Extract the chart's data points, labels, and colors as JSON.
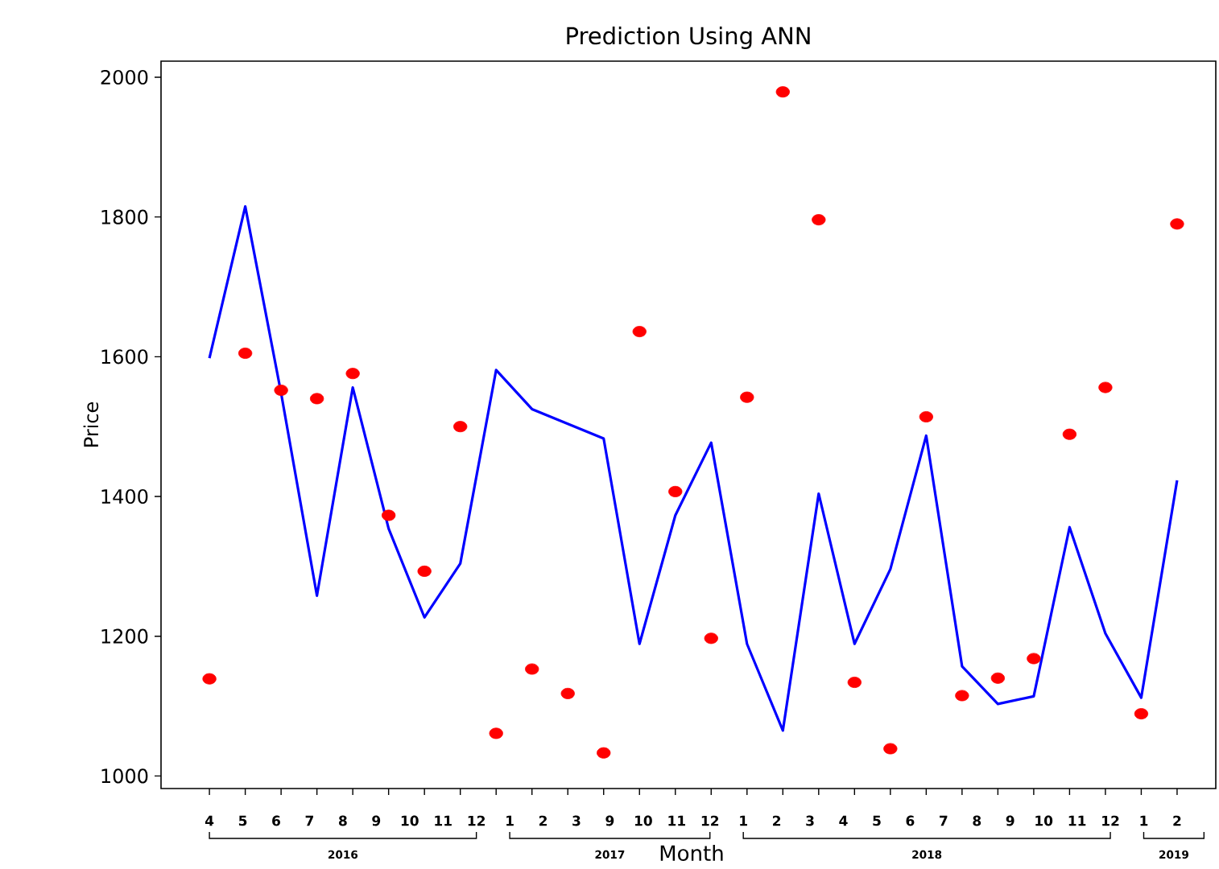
{
  "chart_data": {
    "type": "line",
    "title": "Prediction Using ANN",
    "xlabel": "Month",
    "ylabel": "Price",
    "categories": [
      null,
      null,
      null,
      null,
      null,
      null,
      null,
      null,
      null,
      null,
      null,
      null,
      null,
      null,
      null,
      null,
      null,
      null,
      null,
      null,
      null,
      null,
      null,
      null,
      null,
      null,
      null,
      null
    ],
    "series": [
      {
        "color": "#0000ff",
        "marker": "none",
        "values": [
          1598,
          1815,
          1548,
          1258,
          1556,
          1354,
          1227,
          1304,
          1581,
          1525,
          1504,
          1483,
          1189,
          1373,
          1477,
          1189,
          1065,
          1404,
          1189,
          1296,
          1487,
          1157,
          1103,
          1114,
          1356,
          1204,
          1112,
          1423
        ]
      },
      {
        "type": "scatter",
        "color": "#ff0000",
        "marker": "circle",
        "values": [
          1139,
          1605,
          1552,
          1540,
          1576,
          1373,
          1293,
          1500,
          1061,
          1153,
          1118,
          1033,
          1636,
          1407,
          1197,
          1542,
          1979,
          1796,
          1134,
          1039,
          1514,
          1115,
          1140,
          1168,
          1489,
          1556,
          1089,
          1790
        ]
      }
    ],
    "ylim": [
      982,
      2023
    ],
    "yticks": [
      1000,
      1200,
      1400,
      1600,
      1800,
      2000
    ],
    "grid": false,
    "annotations": [
      "4",
      "5",
      "6",
      "7",
      "8",
      "9",
      "10",
      "11",
      "12",
      "1",
      "2",
      "3",
      "9",
      "10",
      "11",
      "12",
      "1",
      "2",
      "3",
      "4",
      "5",
      "6",
      "7",
      "8",
      "9",
      "10",
      "11",
      "12",
      "1",
      "2",
      "2016",
      "2017",
      "2018",
      "2019"
    ]
  }
}
